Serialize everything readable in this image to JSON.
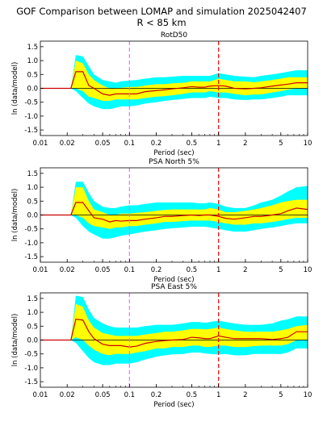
{
  "figure": {
    "title_line1": "GOF Comparison between LOMAP and simulation 2025042407",
    "title_line2": "R < 85 km"
  },
  "colors": {
    "outer_band": "#00ffff",
    "inner_band": "#ffff00",
    "median_line": "#cc0000",
    "ref_line_pink": "#ff66ff",
    "ref_line_red": "#ff0000",
    "zero_line": "#000000"
  },
  "chart_data": [
    {
      "type": "area",
      "title": "RotD50",
      "xlabel": "Period (sec)",
      "ylabel": "ln (data/model)",
      "xscale": "log",
      "xlim": [
        0.01,
        10
      ],
      "ylim": [
        -1.7,
        1.7
      ],
      "xticks": [
        0.01,
        0.02,
        0.05,
        0.1,
        0.2,
        0.5,
        1,
        2,
        5,
        10
      ],
      "xtick_labels": [
        "0.01",
        "0.02",
        "0.05",
        "0.1",
        "0.2",
        "0.5",
        "1",
        "2",
        "5",
        "10"
      ],
      "yticks": [
        1.5,
        1.0,
        0.5,
        0.0,
        -0.5,
        -1.0,
        -1.5
      ],
      "ytick_labels": [
        "1.5",
        "1.0",
        "0.5",
        "0.0",
        "-0.5",
        "-1.0",
        "-1.5"
      ],
      "ref_lines_x": [
        0.1,
        1
      ],
      "x": [
        0.01,
        0.022,
        0.025,
        0.03,
        0.035,
        0.04,
        0.05,
        0.06,
        0.07,
        0.08,
        0.1,
        0.12,
        0.15,
        0.2,
        0.25,
        0.3,
        0.4,
        0.5,
        0.6,
        0.7,
        0.8,
        1.0,
        1.2,
        1.5,
        2.0,
        2.5,
        3.0,
        4.0,
        5.0,
        6.0,
        7.5,
        10
      ],
      "median": [
        0,
        0,
        0.6,
        0.6,
        0.1,
        0.0,
        -0.2,
        -0.25,
        -0.2,
        -0.2,
        -0.2,
        -0.2,
        -0.12,
        -0.08,
        -0.05,
        -0.02,
        0.02,
        0.06,
        0.04,
        0.04,
        0.08,
        0.1,
        0.08,
        0.0,
        -0.02,
        0.0,
        0.02,
        0.08,
        0.12,
        0.15,
        0.2,
        0.2
      ],
      "inner_upper": [
        0,
        0,
        1.0,
        0.9,
        0.5,
        0.3,
        0.1,
        0.0,
        0.0,
        0.02,
        0.05,
        0.05,
        0.1,
        0.15,
        0.15,
        0.18,
        0.2,
        0.25,
        0.25,
        0.25,
        0.25,
        0.35,
        0.3,
        0.25,
        0.25,
        0.22,
        0.25,
        0.3,
        0.35,
        0.4,
        0.4,
        0.4
      ],
      "inner_lower": [
        0,
        0,
        0.0,
        -0.1,
        -0.3,
        -0.35,
        -0.45,
        -0.45,
        -0.4,
        -0.4,
        -0.4,
        -0.4,
        -0.35,
        -0.3,
        -0.28,
        -0.25,
        -0.2,
        -0.15,
        -0.15,
        -0.15,
        -0.1,
        -0.15,
        -0.15,
        -0.2,
        -0.25,
        -0.22,
        -0.22,
        -0.15,
        -0.1,
        -0.05,
        0.0,
        0.0
      ],
      "outer_upper": [
        0,
        0,
        1.2,
        1.15,
        0.8,
        0.5,
        0.3,
        0.25,
        0.2,
        0.25,
        0.28,
        0.3,
        0.35,
        0.4,
        0.4,
        0.42,
        0.45,
        0.45,
        0.45,
        0.45,
        0.45,
        0.55,
        0.5,
        0.45,
        0.42,
        0.4,
        0.45,
        0.5,
        0.55,
        0.6,
        0.65,
        0.65
      ],
      "outer_lower": [
        0,
        0,
        -0.1,
        -0.35,
        -0.55,
        -0.65,
        -0.75,
        -0.75,
        -0.7,
        -0.65,
        -0.65,
        -0.62,
        -0.55,
        -0.5,
        -0.45,
        -0.42,
        -0.38,
        -0.35,
        -0.35,
        -0.35,
        -0.3,
        -0.35,
        -0.35,
        -0.4,
        -0.42,
        -0.4,
        -0.4,
        -0.35,
        -0.3,
        -0.25,
        -0.25,
        -0.25
      ]
    },
    {
      "type": "area",
      "title": "PSA North 5%",
      "xlabel": "Period (sec)",
      "ylabel": "ln (data/model)",
      "xscale": "log",
      "xlim": [
        0.01,
        10
      ],
      "ylim": [
        -1.7,
        1.7
      ],
      "xticks": [
        0.01,
        0.02,
        0.05,
        0.1,
        0.2,
        0.5,
        1,
        2,
        5,
        10
      ],
      "xtick_labels": [
        "0.01",
        "0.02",
        "0.05",
        "0.1",
        "0.2",
        "0.5",
        "1",
        "2",
        "5",
        "10"
      ],
      "yticks": [
        1.5,
        1.0,
        0.5,
        0.0,
        -0.5,
        -1.0,
        -1.5
      ],
      "ytick_labels": [
        "1.5",
        "1.0",
        "0.5",
        "0.0",
        "-0.5",
        "-1.0",
        "-1.5"
      ],
      "ref_lines_x": [
        0.1,
        1
      ],
      "x": [
        0.01,
        0.022,
        0.025,
        0.03,
        0.035,
        0.04,
        0.05,
        0.06,
        0.07,
        0.08,
        0.1,
        0.12,
        0.15,
        0.2,
        0.25,
        0.3,
        0.4,
        0.5,
        0.6,
        0.7,
        0.8,
        1.0,
        1.2,
        1.5,
        2.0,
        2.5,
        3.0,
        4.0,
        5.0,
        6.0,
        7.5,
        10
      ],
      "median": [
        0,
        0,
        0.45,
        0.45,
        0.15,
        -0.1,
        -0.15,
        -0.25,
        -0.2,
        -0.22,
        -0.2,
        -0.2,
        -0.15,
        -0.1,
        -0.05,
        -0.05,
        -0.02,
        0.0,
        -0.02,
        0.0,
        0.0,
        -0.05,
        -0.12,
        -0.15,
        -0.1,
        -0.05,
        -0.05,
        0.0,
        0.05,
        0.15,
        0.25,
        0.2
      ],
      "inner_upper": [
        0,
        0,
        1.0,
        1.0,
        0.5,
        0.2,
        0.1,
        0.0,
        0.0,
        0.05,
        0.05,
        0.08,
        0.1,
        0.15,
        0.18,
        0.2,
        0.2,
        0.2,
        0.2,
        0.2,
        0.25,
        0.2,
        0.1,
        0.1,
        0.15,
        0.2,
        0.25,
        0.35,
        0.45,
        0.5,
        0.55,
        0.55
      ],
      "inner_lower": [
        0,
        0,
        0.0,
        -0.1,
        -0.3,
        -0.4,
        -0.45,
        -0.5,
        -0.45,
        -0.45,
        -0.4,
        -0.4,
        -0.35,
        -0.3,
        -0.25,
        -0.25,
        -0.22,
        -0.2,
        -0.2,
        -0.2,
        -0.2,
        -0.25,
        -0.3,
        -0.35,
        -0.35,
        -0.3,
        -0.3,
        -0.25,
        -0.2,
        -0.15,
        -0.1,
        -0.1
      ],
      "outer_upper": [
        0,
        0,
        1.2,
        1.2,
        0.8,
        0.5,
        0.3,
        0.25,
        0.25,
        0.3,
        0.35,
        0.35,
        0.4,
        0.45,
        0.45,
        0.45,
        0.45,
        0.45,
        0.42,
        0.42,
        0.45,
        0.4,
        0.3,
        0.25,
        0.25,
        0.35,
        0.45,
        0.55,
        0.7,
        0.85,
        1.0,
        1.05
      ],
      "outer_lower": [
        0,
        0,
        -0.1,
        -0.4,
        -0.6,
        -0.7,
        -0.85,
        -0.85,
        -0.8,
        -0.75,
        -0.7,
        -0.65,
        -0.6,
        -0.55,
        -0.5,
        -0.48,
        -0.45,
        -0.42,
        -0.42,
        -0.42,
        -0.45,
        -0.5,
        -0.55,
        -0.6,
        -0.6,
        -0.55,
        -0.5,
        -0.45,
        -0.4,
        -0.35,
        -0.3,
        -0.3
      ]
    },
    {
      "type": "area",
      "title": "PSA East 5%",
      "xlabel": "Period (sec)",
      "ylabel": "ln (data/model)",
      "xscale": "log",
      "xlim": [
        0.01,
        10
      ],
      "ylim": [
        -1.7,
        1.7
      ],
      "xticks": [
        0.01,
        0.02,
        0.05,
        0.1,
        0.2,
        0.5,
        1,
        2,
        5,
        10
      ],
      "xtick_labels": [
        "0.01",
        "0.02",
        "0.05",
        "0.1",
        "0.2",
        "0.5",
        "1",
        "2",
        "5",
        "10"
      ],
      "yticks": [
        1.5,
        1.0,
        0.5,
        0.0,
        -0.5,
        -1.0,
        -1.5
      ],
      "ytick_labels": [
        "1.5",
        "1.0",
        "0.5",
        "0.0",
        "-0.5",
        "-1.0",
        "-1.5"
      ],
      "ref_lines_x": [
        0.1,
        1
      ],
      "x": [
        0.01,
        0.022,
        0.025,
        0.03,
        0.035,
        0.04,
        0.05,
        0.06,
        0.07,
        0.08,
        0.1,
        0.12,
        0.15,
        0.2,
        0.25,
        0.3,
        0.4,
        0.5,
        0.6,
        0.7,
        0.8,
        1.0,
        1.2,
        1.5,
        2.0,
        2.5,
        3.0,
        4.0,
        5.0,
        6.0,
        7.5,
        10
      ],
      "median": [
        0,
        0,
        0.75,
        0.72,
        0.3,
        0.05,
        -0.15,
        -0.2,
        -0.2,
        -0.2,
        -0.25,
        -0.22,
        -0.12,
        -0.05,
        -0.02,
        0.0,
        0.02,
        0.1,
        0.08,
        0.05,
        0.05,
        0.15,
        0.1,
        0.05,
        0.05,
        0.05,
        0.05,
        0.02,
        0.05,
        0.1,
        0.3,
        0.3
      ],
      "inner_upper": [
        0,
        0,
        1.3,
        1.2,
        0.7,
        0.45,
        0.25,
        0.2,
        0.15,
        0.15,
        0.15,
        0.15,
        0.2,
        0.25,
        0.3,
        0.3,
        0.35,
        0.4,
        0.4,
        0.38,
        0.4,
        0.45,
        0.4,
        0.35,
        0.3,
        0.3,
        0.3,
        0.3,
        0.35,
        0.4,
        0.5,
        0.55
      ],
      "inner_lower": [
        0,
        0,
        0.1,
        0.0,
        -0.2,
        -0.35,
        -0.5,
        -0.55,
        -0.5,
        -0.5,
        -0.5,
        -0.45,
        -0.4,
        -0.3,
        -0.3,
        -0.25,
        -0.25,
        -0.2,
        -0.2,
        -0.25,
        -0.25,
        -0.2,
        -0.2,
        -0.25,
        -0.25,
        -0.22,
        -0.2,
        -0.2,
        -0.2,
        -0.15,
        0.0,
        0.0
      ],
      "outer_upper": [
        0,
        0,
        1.6,
        1.55,
        1.1,
        0.8,
        0.6,
        0.5,
        0.45,
        0.45,
        0.45,
        0.45,
        0.5,
        0.55,
        0.55,
        0.55,
        0.6,
        0.65,
        0.65,
        0.62,
        0.65,
        0.7,
        0.65,
        0.6,
        0.55,
        0.55,
        0.55,
        0.6,
        0.7,
        0.75,
        0.85,
        0.85
      ],
      "outer_lower": [
        0,
        0,
        -0.1,
        -0.4,
        -0.65,
        -0.8,
        -0.9,
        -0.9,
        -0.85,
        -0.85,
        -0.85,
        -0.8,
        -0.7,
        -0.6,
        -0.55,
        -0.52,
        -0.5,
        -0.45,
        -0.45,
        -0.48,
        -0.5,
        -0.52,
        -0.5,
        -0.55,
        -0.55,
        -0.5,
        -0.5,
        -0.5,
        -0.5,
        -0.45,
        -0.3,
        -0.3
      ]
    }
  ]
}
